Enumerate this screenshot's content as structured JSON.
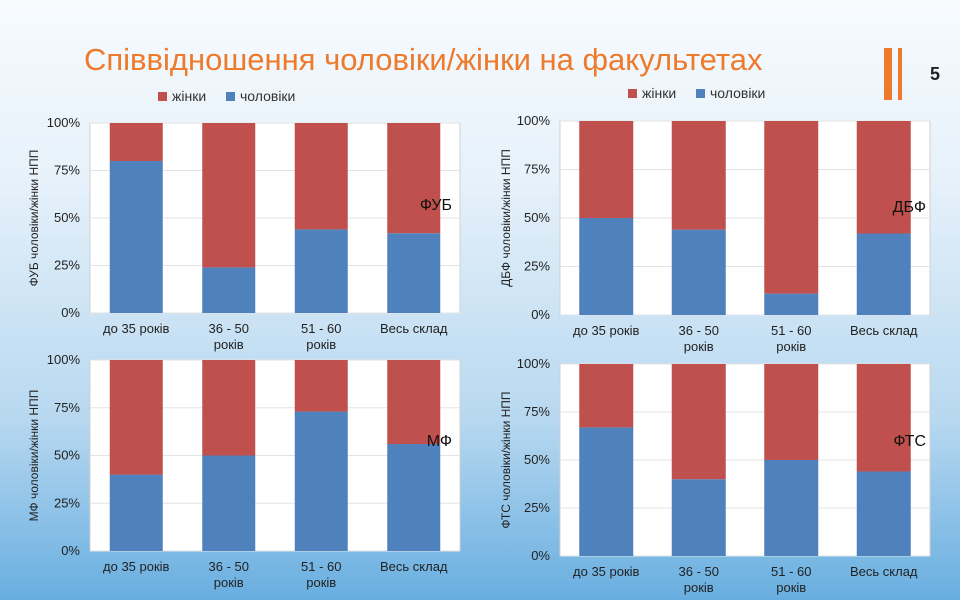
{
  "header": {
    "title": "Співвідношення чоловіки/жінки на факультетах",
    "page_number": "5"
  },
  "colors": {
    "women": "#c0504d",
    "men": "#4f81bd",
    "accent": "#ee7a2c"
  },
  "chart_data": [
    {
      "type": "bar",
      "stacked": true,
      "percent": true,
      "facet_label": "ФУБ",
      "ylabel": "ФУБ чоловіки/жінки НПП",
      "categories": [
        [
          "до 35 років"
        ],
        [
          "36 - 50",
          "років"
        ],
        [
          "51 - 60",
          "років"
        ],
        [
          "Весь склад"
        ]
      ],
      "series": [
        {
          "name": "жінки",
          "values": [
            20,
            76,
            56,
            58
          ]
        },
        {
          "name": "чоловіки",
          "values": [
            80,
            24,
            44,
            42
          ]
        }
      ],
      "yticks": [
        "0%",
        "25%",
        "50%",
        "75%",
        "100%"
      ],
      "ylim": [
        0,
        100
      ],
      "legend": "top",
      "legend_shown": true
    },
    {
      "type": "bar",
      "stacked": true,
      "percent": true,
      "facet_label": "ДБФ",
      "ylabel": "ДБФ чоловіки/жінки НПП",
      "categories": [
        [
          "до 35 років"
        ],
        [
          "36 - 50",
          "років"
        ],
        [
          "51 - 60",
          "років"
        ],
        [
          "Весь склад"
        ]
      ],
      "series": [
        {
          "name": "жінки",
          "values": [
            50,
            56,
            89,
            58
          ]
        },
        {
          "name": "чоловіки",
          "values": [
            50,
            44,
            11,
            42
          ]
        }
      ],
      "yticks": [
        "0%",
        "25%",
        "50%",
        "75%",
        "100%"
      ],
      "ylim": [
        0,
        100
      ],
      "legend": "top",
      "legend_shown": true
    },
    {
      "type": "bar",
      "stacked": true,
      "percent": true,
      "facet_label": "МФ",
      "ylabel": "МФ чоловіки/жінки НПП",
      "categories": [
        [
          "до 35 років"
        ],
        [
          "36 - 50",
          "років"
        ],
        [
          "51 - 60",
          "років"
        ],
        [
          "Весь склад"
        ]
      ],
      "series": [
        {
          "name": "жінки",
          "values": [
            60,
            50,
            27,
            44
          ]
        },
        {
          "name": "чоловіки",
          "values": [
            40,
            50,
            73,
            56
          ]
        }
      ],
      "yticks": [
        "0%",
        "25%",
        "50%",
        "75%",
        "100%"
      ],
      "ylim": [
        0,
        100
      ],
      "legend": "none",
      "legend_shown": false
    },
    {
      "type": "bar",
      "stacked": true,
      "percent": true,
      "facet_label": "ФТС",
      "ylabel": "ФТС чоловіки/жінки НПП",
      "categories": [
        [
          "до 35 років"
        ],
        [
          "36 - 50",
          "років"
        ],
        [
          "51 - 60",
          "років"
        ],
        [
          "Весь склад"
        ]
      ],
      "series": [
        {
          "name": "жінки",
          "values": [
            33,
            60,
            50,
            56
          ]
        },
        {
          "name": "чоловіки",
          "values": [
            67,
            40,
            50,
            44
          ]
        }
      ],
      "yticks": [
        "0%",
        "25%",
        "50%",
        "75%",
        "100%"
      ],
      "ylim": [
        0,
        100
      ],
      "legend": "none",
      "legend_shown": false
    }
  ]
}
